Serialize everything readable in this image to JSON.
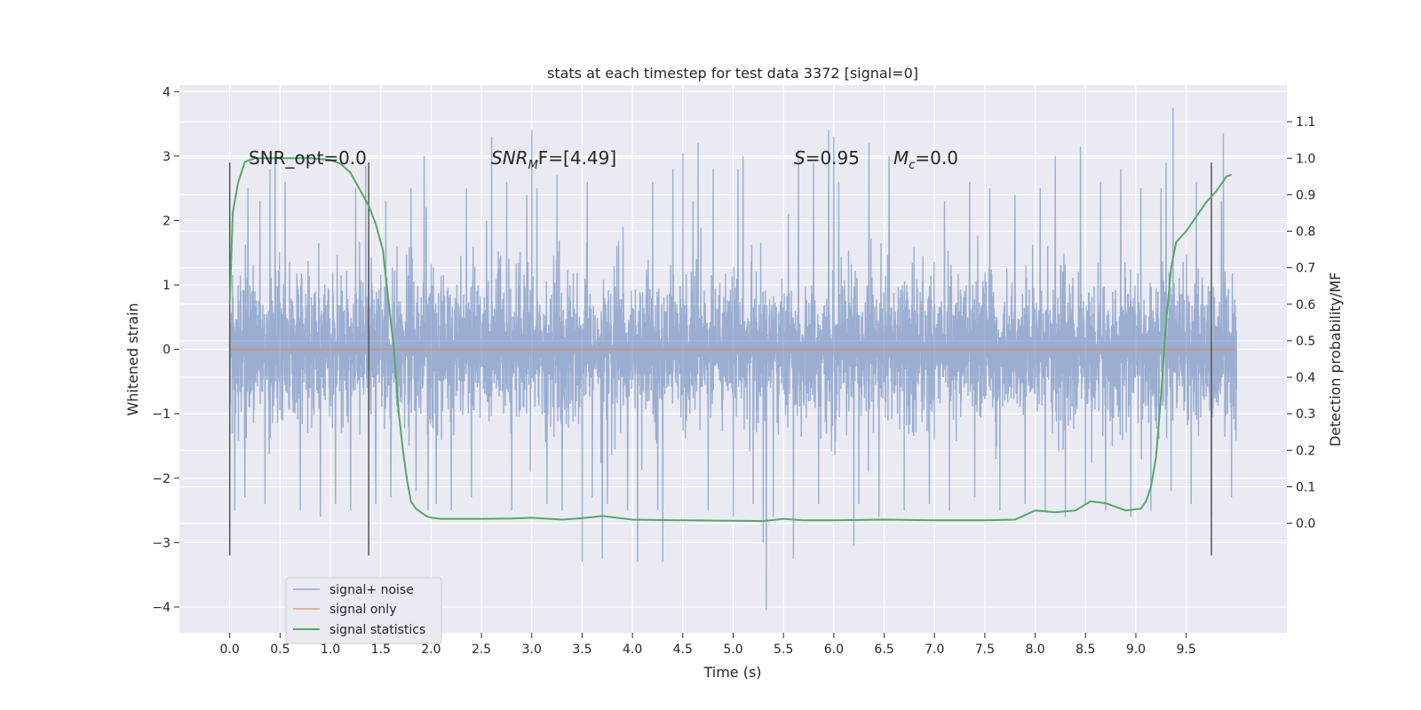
{
  "chart_data": {
    "type": "line",
    "title": "stats at each timestep for test data 3372 [signal=0]",
    "xlabel": "Time (s)",
    "ylabel": "Whitened strain",
    "y2label": "Detection probability/MF",
    "xlim": [
      -0.5,
      10.5
    ],
    "ylim": [
      -4.4,
      4.1
    ],
    "y2lim": [
      -0.3,
      1.2
    ],
    "x_ticks": [
      "0.0",
      "0.5",
      "1.0",
      "1.5",
      "2.0",
      "2.5",
      "3.0",
      "3.5",
      "4.0",
      "4.5",
      "5.0",
      "5.5",
      "6.0",
      "6.5",
      "7.0",
      "7.5",
      "8.0",
      "8.5",
      "9.0",
      "9.5"
    ],
    "y_ticks": [
      "4",
      "3",
      "2",
      "1",
      "0",
      "−1",
      "−2",
      "−3",
      "−4"
    ],
    "y2_ticks": [
      "1.1",
      "1.0",
      "0.9",
      "0.8",
      "0.7",
      "0.6",
      "0.5",
      "0.4",
      "0.3",
      "0.2",
      "0.1",
      "0.0"
    ],
    "grid": true,
    "legend_position": "lower-left",
    "colors": {
      "background": "#eaeaf2",
      "grid": "#ffffff",
      "noise": "#4c72b0",
      "signal": "#dd8452",
      "stats": "#55a868",
      "markers": "#555555"
    },
    "annotations": {
      "snr_opt": "SNR_opt=0.0",
      "snr_mf_prefix": "SNR",
      "snr_mf_sub": "M",
      "snr_mf_suffix": "F=[4.49]",
      "s_prefix": "S",
      "s_value": "=0.95",
      "mc_prefix": "M",
      "mc_sub": "c",
      "mc_value": "=0.0"
    },
    "vertical_markers": [
      0.0,
      1.38,
      9.75
    ],
    "series": [
      {
        "name": "signal+ noise",
        "axis": "left",
        "x_range": [
          0.0,
          10.0
        ],
        "envelope_upper": 1.1,
        "envelope_lower": -1.1,
        "peaks": [
          [
            0.05,
            2.0
          ],
          [
            0.18,
            2.5
          ],
          [
            0.3,
            2.3
          ],
          [
            0.4,
            2.8
          ],
          [
            0.55,
            2.6
          ],
          [
            0.7,
            2.6
          ],
          [
            0.9,
            2.7
          ],
          [
            1.05,
            2.6
          ],
          [
            1.25,
            2.5
          ],
          [
            1.55,
            2.3
          ],
          [
            1.8,
            2.5
          ],
          [
            1.95,
            2.2
          ],
          [
            2.05,
            2.3
          ],
          [
            2.2,
            2.7
          ],
          [
            2.35,
            2.5
          ],
          [
            2.55,
            2.0
          ],
          [
            2.75,
            2.6
          ],
          [
            2.95,
            2.4
          ],
          [
            3.05,
            2.5
          ],
          [
            3.25,
            2.7
          ],
          [
            3.55,
            2.6
          ],
          [
            3.75,
            2.5
          ],
          [
            3.95,
            2.6
          ],
          [
            4.2,
            2.6
          ],
          [
            4.4,
            2.8
          ],
          [
            4.5,
            2.7
          ],
          [
            4.6,
            2.3
          ],
          [
            4.8,
            2.8
          ],
          [
            5.05,
            2.8
          ],
          [
            5.3,
            2.4
          ],
          [
            5.55,
            2.1
          ],
          [
            5.8,
            2.9
          ],
          [
            6.05,
            2.6
          ],
          [
            6.2,
            2.4
          ],
          [
            6.45,
            2.2
          ],
          [
            6.7,
            2.4
          ],
          [
            6.95,
            2.6
          ],
          [
            7.1,
            2.3
          ],
          [
            7.35,
            2.6
          ],
          [
            7.55,
            2.5
          ],
          [
            7.8,
            2.4
          ],
          [
            8.05,
            2.5
          ],
          [
            8.3,
            2.6
          ],
          [
            8.5,
            2.2
          ],
          [
            8.65,
            2.6
          ],
          [
            8.85,
            2.8
          ],
          [
            9.05,
            2.5
          ],
          [
            9.25,
            2.5
          ],
          [
            9.6,
            2.6
          ],
          [
            9.85,
            2.3
          ]
        ],
        "troughs": [
          [
            0.05,
            -2.5
          ],
          [
            0.15,
            -2.3
          ],
          [
            0.35,
            -2.4
          ],
          [
            0.45,
            -2.6
          ],
          [
            0.7,
            -2.5
          ],
          [
            0.9,
            -2.6
          ],
          [
            1.05,
            -2.4
          ],
          [
            1.2,
            -2.5
          ],
          [
            1.45,
            -2.4
          ],
          [
            1.6,
            -2.3
          ],
          [
            1.85,
            -2.2
          ],
          [
            2.05,
            -2.4
          ],
          [
            2.2,
            -2.5
          ],
          [
            2.4,
            -2.3
          ],
          [
            2.6,
            -2.2
          ],
          [
            2.8,
            -2.5
          ],
          [
            3.0,
            -2.4
          ],
          [
            3.15,
            -2.4
          ],
          [
            3.3,
            -2.5
          ],
          [
            3.6,
            -2.3
          ],
          [
            3.75,
            -2.4
          ],
          [
            3.95,
            -2.5
          ],
          [
            4.25,
            -2.5
          ],
          [
            4.5,
            -2.3
          ],
          [
            4.75,
            -2.5
          ],
          [
            5.0,
            -2.6
          ],
          [
            5.2,
            -2.4
          ],
          [
            5.4,
            -2.6
          ],
          [
            5.6,
            -2.3
          ],
          [
            5.85,
            -2.4
          ],
          [
            6.0,
            -2.5
          ],
          [
            6.25,
            -2.4
          ],
          [
            6.45,
            -2.6
          ],
          [
            6.7,
            -2.5
          ],
          [
            6.95,
            -2.4
          ],
          [
            7.15,
            -2.5
          ],
          [
            7.4,
            -2.3
          ],
          [
            7.65,
            -2.5
          ],
          [
            7.9,
            -2.4
          ],
          [
            8.1,
            -2.5
          ],
          [
            8.3,
            -2.6
          ],
          [
            8.5,
            -2.4
          ],
          [
            8.7,
            -2.5
          ],
          [
            8.95,
            -2.6
          ],
          [
            9.15,
            -2.5
          ],
          [
            9.35,
            -2.2
          ],
          [
            9.55,
            -2.4
          ],
          [
            9.75,
            -2.6
          ],
          [
            9.95,
            -2.3
          ]
        ],
        "extreme_spikes": [
          [
            0.45,
            2.95
          ],
          [
            1.35,
            2.85
          ],
          [
            1.93,
            3.0
          ],
          [
            1.97,
            -2.5
          ],
          [
            2.6,
            3.3
          ],
          [
            3.0,
            3.4
          ],
          [
            3.5,
            -3.3
          ],
          [
            3.7,
            -3.25
          ],
          [
            4.05,
            -3.3
          ],
          [
            4.3,
            -3.3
          ],
          [
            4.5,
            3.05
          ],
          [
            4.65,
            3.2
          ],
          [
            5.1,
            3.0
          ],
          [
            5.3,
            -3.0
          ],
          [
            5.33,
            -4.05
          ],
          [
            5.6,
            -3.25
          ],
          [
            5.65,
            3.1
          ],
          [
            5.95,
            3.4
          ],
          [
            6.0,
            3.3
          ],
          [
            6.2,
            -3.05
          ],
          [
            6.35,
            3.2
          ],
          [
            6.55,
            3.0
          ],
          [
            8.2,
            3.0
          ],
          [
            8.45,
            3.15
          ],
          [
            9.3,
            2.9
          ],
          [
            9.37,
            3.75
          ],
          [
            9.87,
            3.35
          ]
        ]
      },
      {
        "name": "signal only",
        "axis": "left",
        "x": [
          0.0,
          10.0
        ],
        "y": [
          0.0,
          0.0
        ]
      },
      {
        "name": "signal statistics",
        "axis": "right",
        "x": [
          0.0,
          0.03,
          0.08,
          0.15,
          0.25,
          0.5,
          0.8,
          1.0,
          1.1,
          1.2,
          1.3,
          1.38,
          1.45,
          1.52,
          1.58,
          1.63,
          1.68,
          1.72,
          1.76,
          1.8,
          1.85,
          1.9,
          1.95,
          2.0,
          2.1,
          2.2,
          2.5,
          2.8,
          3.0,
          3.3,
          3.5,
          3.7,
          4.0,
          4.5,
          5.0,
          5.3,
          5.5,
          5.7,
          6.0,
          6.5,
          7.0,
          7.5,
          7.8,
          8.0,
          8.2,
          8.4,
          8.55,
          8.7,
          8.9,
          9.05,
          9.1,
          9.15,
          9.2,
          9.25,
          9.3,
          9.35,
          9.4,
          9.5,
          9.6,
          9.7,
          9.8,
          9.9,
          9.95
        ],
        "y": [
          0.6,
          0.85,
          0.93,
          0.99,
          1.0,
          1.0,
          1.0,
          0.995,
          0.985,
          0.96,
          0.91,
          0.87,
          0.82,
          0.75,
          0.6,
          0.48,
          0.3,
          0.2,
          0.12,
          0.06,
          0.04,
          0.03,
          0.02,
          0.015,
          0.012,
          0.012,
          0.012,
          0.013,
          0.015,
          0.01,
          0.014,
          0.02,
          0.01,
          0.008,
          0.007,
          0.006,
          0.012,
          0.008,
          0.008,
          0.01,
          0.008,
          0.008,
          0.01,
          0.035,
          0.03,
          0.035,
          0.06,
          0.055,
          0.035,
          0.04,
          0.06,
          0.1,
          0.18,
          0.35,
          0.55,
          0.7,
          0.77,
          0.8,
          0.84,
          0.88,
          0.91,
          0.95,
          0.955
        ]
      }
    ]
  }
}
